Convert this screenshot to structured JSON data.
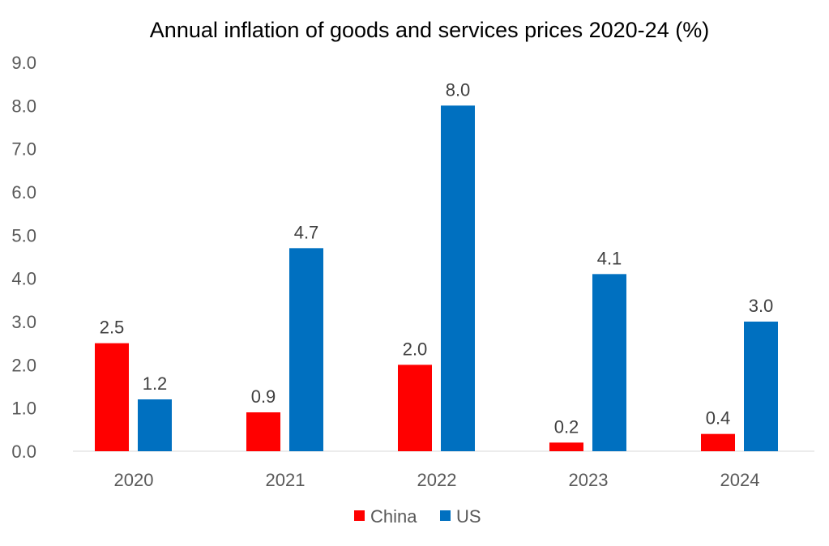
{
  "chart_data": {
    "type": "bar",
    "title": "Annual inflation of goods and services prices 2020-24 (%)",
    "xlabel": "",
    "ylabel": "",
    "categories": [
      "2020",
      "2021",
      "2022",
      "2023",
      "2024"
    ],
    "series": [
      {
        "name": "China",
        "color": "#FF0000",
        "values": [
          2.5,
          0.9,
          2.0,
          0.2,
          0.4
        ],
        "labels": [
          "2.5",
          "0.9",
          "2.0",
          "0.2",
          "0.4"
        ]
      },
      {
        "name": "US",
        "color": "#0070C0",
        "values": [
          1.2,
          4.7,
          8.0,
          4.1,
          3.0
        ],
        "labels": [
          "1.2",
          "4.7",
          "8.0",
          "4.1",
          "3.0"
        ]
      }
    ],
    "ylim": [
      0,
      9
    ],
    "yticks": [
      "0.0",
      "1.0",
      "2.0",
      "3.0",
      "4.0",
      "5.0",
      "6.0",
      "7.0",
      "8.0",
      "9.0"
    ],
    "grid": false,
    "legend": "bottom"
  }
}
